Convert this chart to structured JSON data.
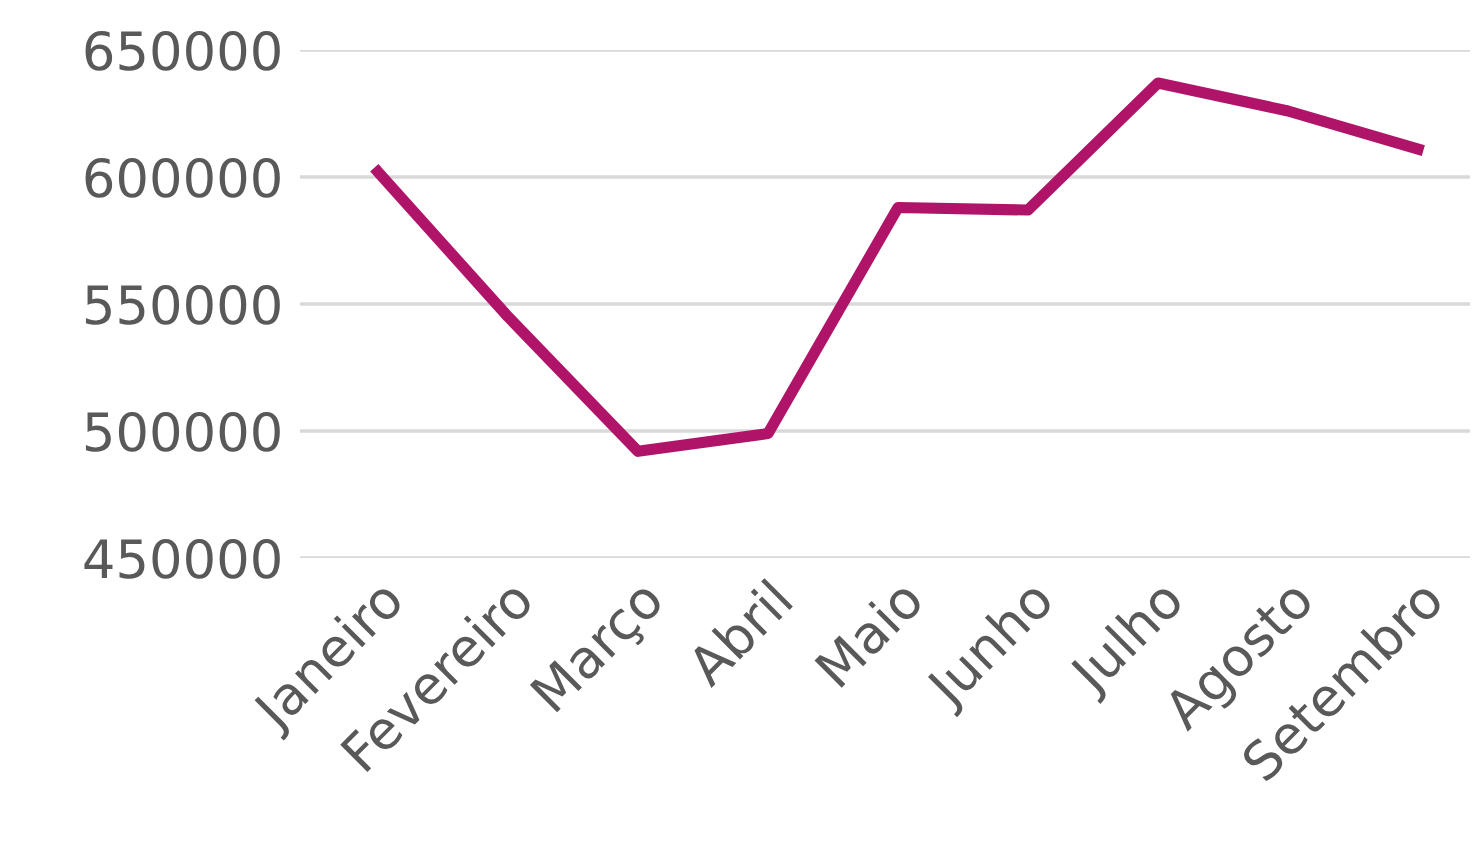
{
  "chart_data": {
    "type": "line",
    "categories": [
      "Janeiro",
      "Fevereiro",
      "Março",
      "Abril",
      "Maio",
      "Junho",
      "Julho",
      "Agosto",
      "Setembro"
    ],
    "series": [
      {
        "color": "#b01468",
        "values": [
          602000,
          545000,
          492000,
          499000,
          588000,
          587000,
          637000,
          626000,
          611000
        ]
      }
    ],
    "ylim": [
      450000,
      650000
    ],
    "yticks": [
      450000,
      500000,
      550000,
      600000,
      650000
    ],
    "grid": "y",
    "legend": false,
    "marker": "none",
    "line_style": "solid"
  }
}
